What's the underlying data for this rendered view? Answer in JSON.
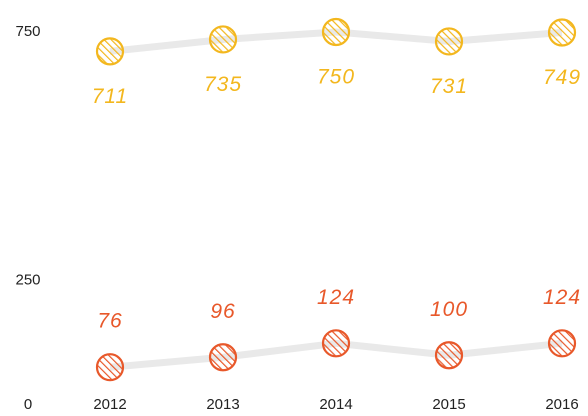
{
  "chart_data": {
    "type": "line",
    "categories": [
      "2012",
      "2013",
      "2014",
      "2015",
      "2016"
    ],
    "series": [
      {
        "color": "#f3b71e",
        "values": [
          711,
          735,
          750,
          731,
          749
        ]
      },
      {
        "color": "#e8582a",
        "values": [
          76,
          96,
          124,
          100,
          124
        ]
      }
    ],
    "ylim": [
      0,
      750
    ],
    "yticks": [
      0,
      250,
      750
    ],
    "grid": false,
    "line_color": "#e9e9e9"
  }
}
